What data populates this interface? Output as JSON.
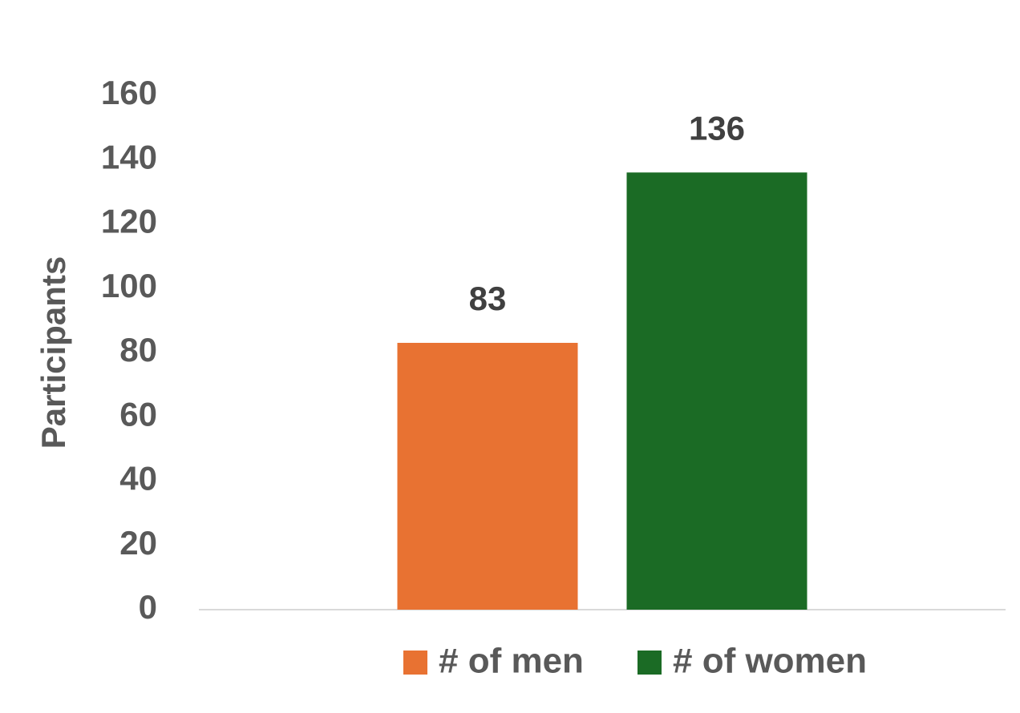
{
  "chart_data": {
    "type": "bar",
    "y_label": "Participants",
    "categories": [
      null
    ],
    "series": [
      {
        "name": "# of men",
        "color": "#e87232",
        "values": [
          83
        ]
      },
      {
        "name": "# of women",
        "color": "#1b6b25",
        "values": [
          136
        ]
      }
    ],
    "ylim": [
      0,
      160
    ],
    "yticks": [
      0,
      20,
      40,
      60,
      80,
      100,
      120,
      140,
      160
    ],
    "grid": false,
    "legend": "bottom"
  }
}
